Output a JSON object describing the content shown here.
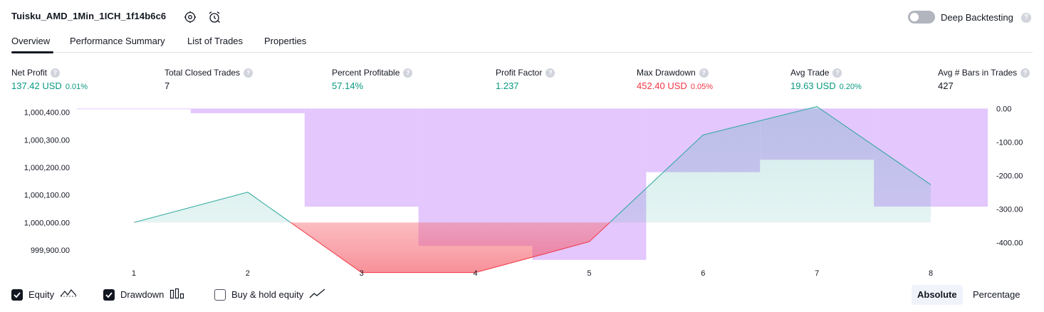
{
  "header": {
    "title": "Tuisku_AMD_1Min_1ICH_1f14b6c6",
    "deep_backtesting_label": "Deep Backtesting",
    "help_glyph": "?"
  },
  "tabs": [
    "Overview",
    "Performance Summary",
    "List of Trades",
    "Properties"
  ],
  "metrics": [
    {
      "label": "Net Profit",
      "value": "137.42 USD",
      "pct": "0.01%",
      "color": "green"
    },
    {
      "label": "Total Closed Trades",
      "value": "7",
      "pct": "",
      "color": "dark"
    },
    {
      "label": "Percent Profitable",
      "value": "57.14%",
      "pct": "",
      "color": "green"
    },
    {
      "label": "Profit Factor",
      "value": "1.237",
      "pct": "",
      "color": "green"
    },
    {
      "label": "Max Drawdown",
      "value": "452.40 USD",
      "pct": "0.05%",
      "color": "red"
    },
    {
      "label": "Avg Trade",
      "value": "19.63 USD",
      "pct": "0.20%",
      "color": "green"
    },
    {
      "label": "Avg # Bars in Trades",
      "value": "427",
      "pct": "",
      "color": "dark"
    }
  ],
  "colors": {
    "profit": "#089981",
    "loss": "#f23645",
    "drawdown_bar": "#e1c4fd",
    "equity_line_pos": "#26a69a",
    "equity_line_neg": "#f23645"
  },
  "chart_data": {
    "type": "line",
    "x_ticks": [
      "1",
      "2",
      "3",
      "4",
      "5",
      "6",
      "7",
      "8"
    ],
    "left_axis": {
      "ticks": [
        "1,000,400.00",
        "1,000,300.00",
        "1,000,200.00",
        "1,000,100.00",
        "1,000,000.00",
        "999,900.00"
      ],
      "ylim": [
        999830,
        1000420
      ]
    },
    "right_axis": {
      "ticks": [
        "0.00",
        "-100.00",
        "-200.00",
        "-300.00",
        "-400.00"
      ],
      "ylim": [
        -480,
        5
      ]
    },
    "series": [
      {
        "name": "Equity",
        "type": "line",
        "baseline": 1000000,
        "values": [
          1000000,
          1000110,
          999818,
          999818,
          999930,
          1000318,
          1000421,
          1000137
        ]
      },
      {
        "name": "Drawdown",
        "type": "bar",
        "values": [
          -2,
          -14,
          -293,
          -410,
          -452,
          -190,
          -153,
          -293
        ]
      }
    ]
  },
  "legend": {
    "equity_label": "Equity",
    "equity_checked": true,
    "drawdown_label": "Drawdown",
    "drawdown_checked": true,
    "buyhold_label": "Buy & hold equity",
    "buyhold_checked": false
  },
  "mode": {
    "absolute_label": "Absolute",
    "percentage_label": "Percentage",
    "selected": "Absolute"
  }
}
